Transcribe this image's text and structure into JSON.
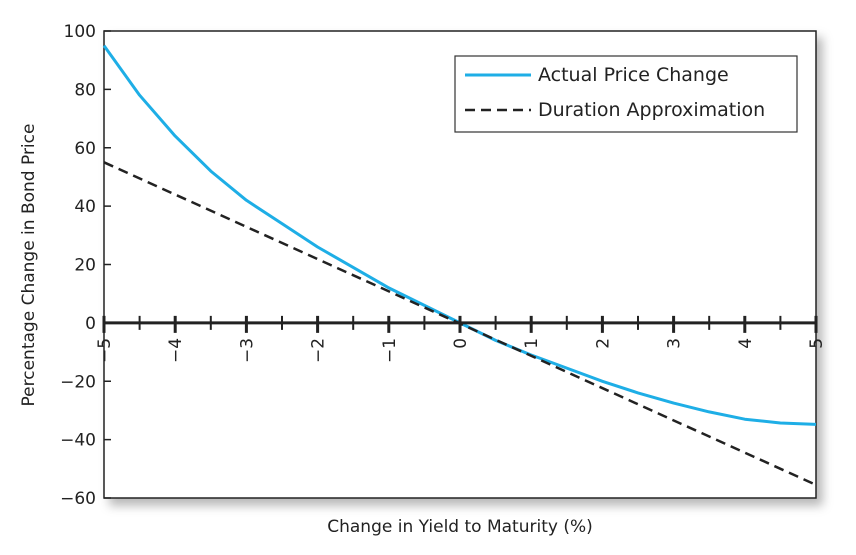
{
  "chart_data": {
    "type": "line",
    "xlabel": "Change in Yield to Maturity (%)",
    "ylabel": "Percentage Change in Bond Price",
    "xlim": [
      -5,
      5
    ],
    "ylim": [
      -60,
      100
    ],
    "x_ticks": [
      -5,
      -4,
      -3,
      -2,
      -1,
      0,
      1,
      2,
      3,
      4,
      5
    ],
    "x_tick_labels": [
      "−5",
      "−4",
      "−3",
      "−2",
      "−1",
      "0",
      "1",
      "2",
      "3",
      "4",
      "5"
    ],
    "y_ticks": [
      -60,
      -40,
      -20,
      0,
      20,
      40,
      60,
      80,
      100
    ],
    "y_tick_labels": [
      "−60",
      "−40",
      "−20",
      "0",
      "20",
      "40",
      "60",
      "80",
      "100"
    ],
    "grid": false,
    "legend_position": "top-right",
    "series": [
      {
        "name": "Actual Price Change",
        "color": "#1eaee6",
        "style": "solid",
        "x": [
          -5,
          -4.5,
          -4,
          -3.5,
          -3,
          -2.5,
          -2,
          -1.5,
          -1,
          -0.5,
          0,
          0.5,
          1,
          1.5,
          2,
          2.5,
          3,
          3.5,
          4,
          4.5,
          5
        ],
        "y": [
          95,
          78,
          64,
          52,
          42,
          34,
          26,
          19,
          12,
          6,
          0,
          -6,
          -11,
          -15.5,
          -20,
          -24,
          -27.5,
          -30.5,
          -33,
          -34.3,
          -34.8
        ]
      },
      {
        "name": "Duration Approximation",
        "color": "#222222",
        "style": "dashed",
        "x": [
          -5,
          5
        ],
        "y": [
          55,
          -55.5
        ]
      }
    ]
  }
}
